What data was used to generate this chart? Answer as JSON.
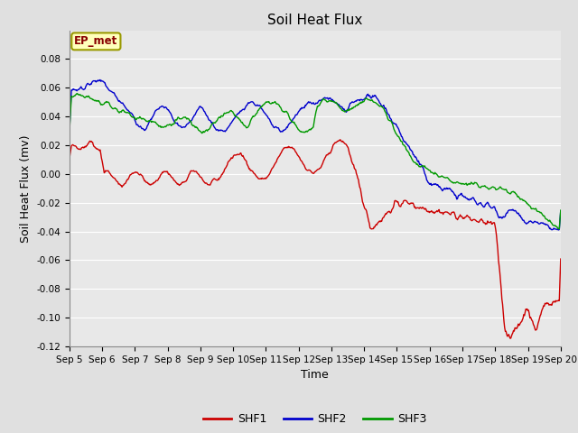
{
  "title": "Soil Heat Flux",
  "xlabel": "Time",
  "ylabel": "Soil Heat Flux (mv)",
  "ylim": [
    -0.12,
    0.1
  ],
  "yticks": [
    -0.12,
    -0.1,
    -0.08,
    -0.06,
    -0.04,
    -0.02,
    0.0,
    0.02,
    0.04,
    0.06,
    0.08
  ],
  "xticklabels": [
    "Sep 5",
    "Sep 6",
    "Sep 7",
    "Sep 8",
    "Sep 9",
    "Sep 10",
    "Sep 11",
    "Sep 12",
    "Sep 13",
    "Sep 14",
    "Sep 15",
    "Sep 16",
    "Sep 17",
    "Sep 18",
    "Sep 19",
    "Sep 20"
  ],
  "colors": {
    "SHF1": "#cc0000",
    "SHF2": "#0000cc",
    "SHF3": "#009900"
  },
  "legend_label": "EP_met",
  "background_color": "#e0e0e0",
  "plot_bg_color": "#e8e8e8",
  "grid_color": "#ffffff",
  "linewidth": 1.0,
  "tick_fontsize": 7.5,
  "label_fontsize": 9,
  "title_fontsize": 11
}
